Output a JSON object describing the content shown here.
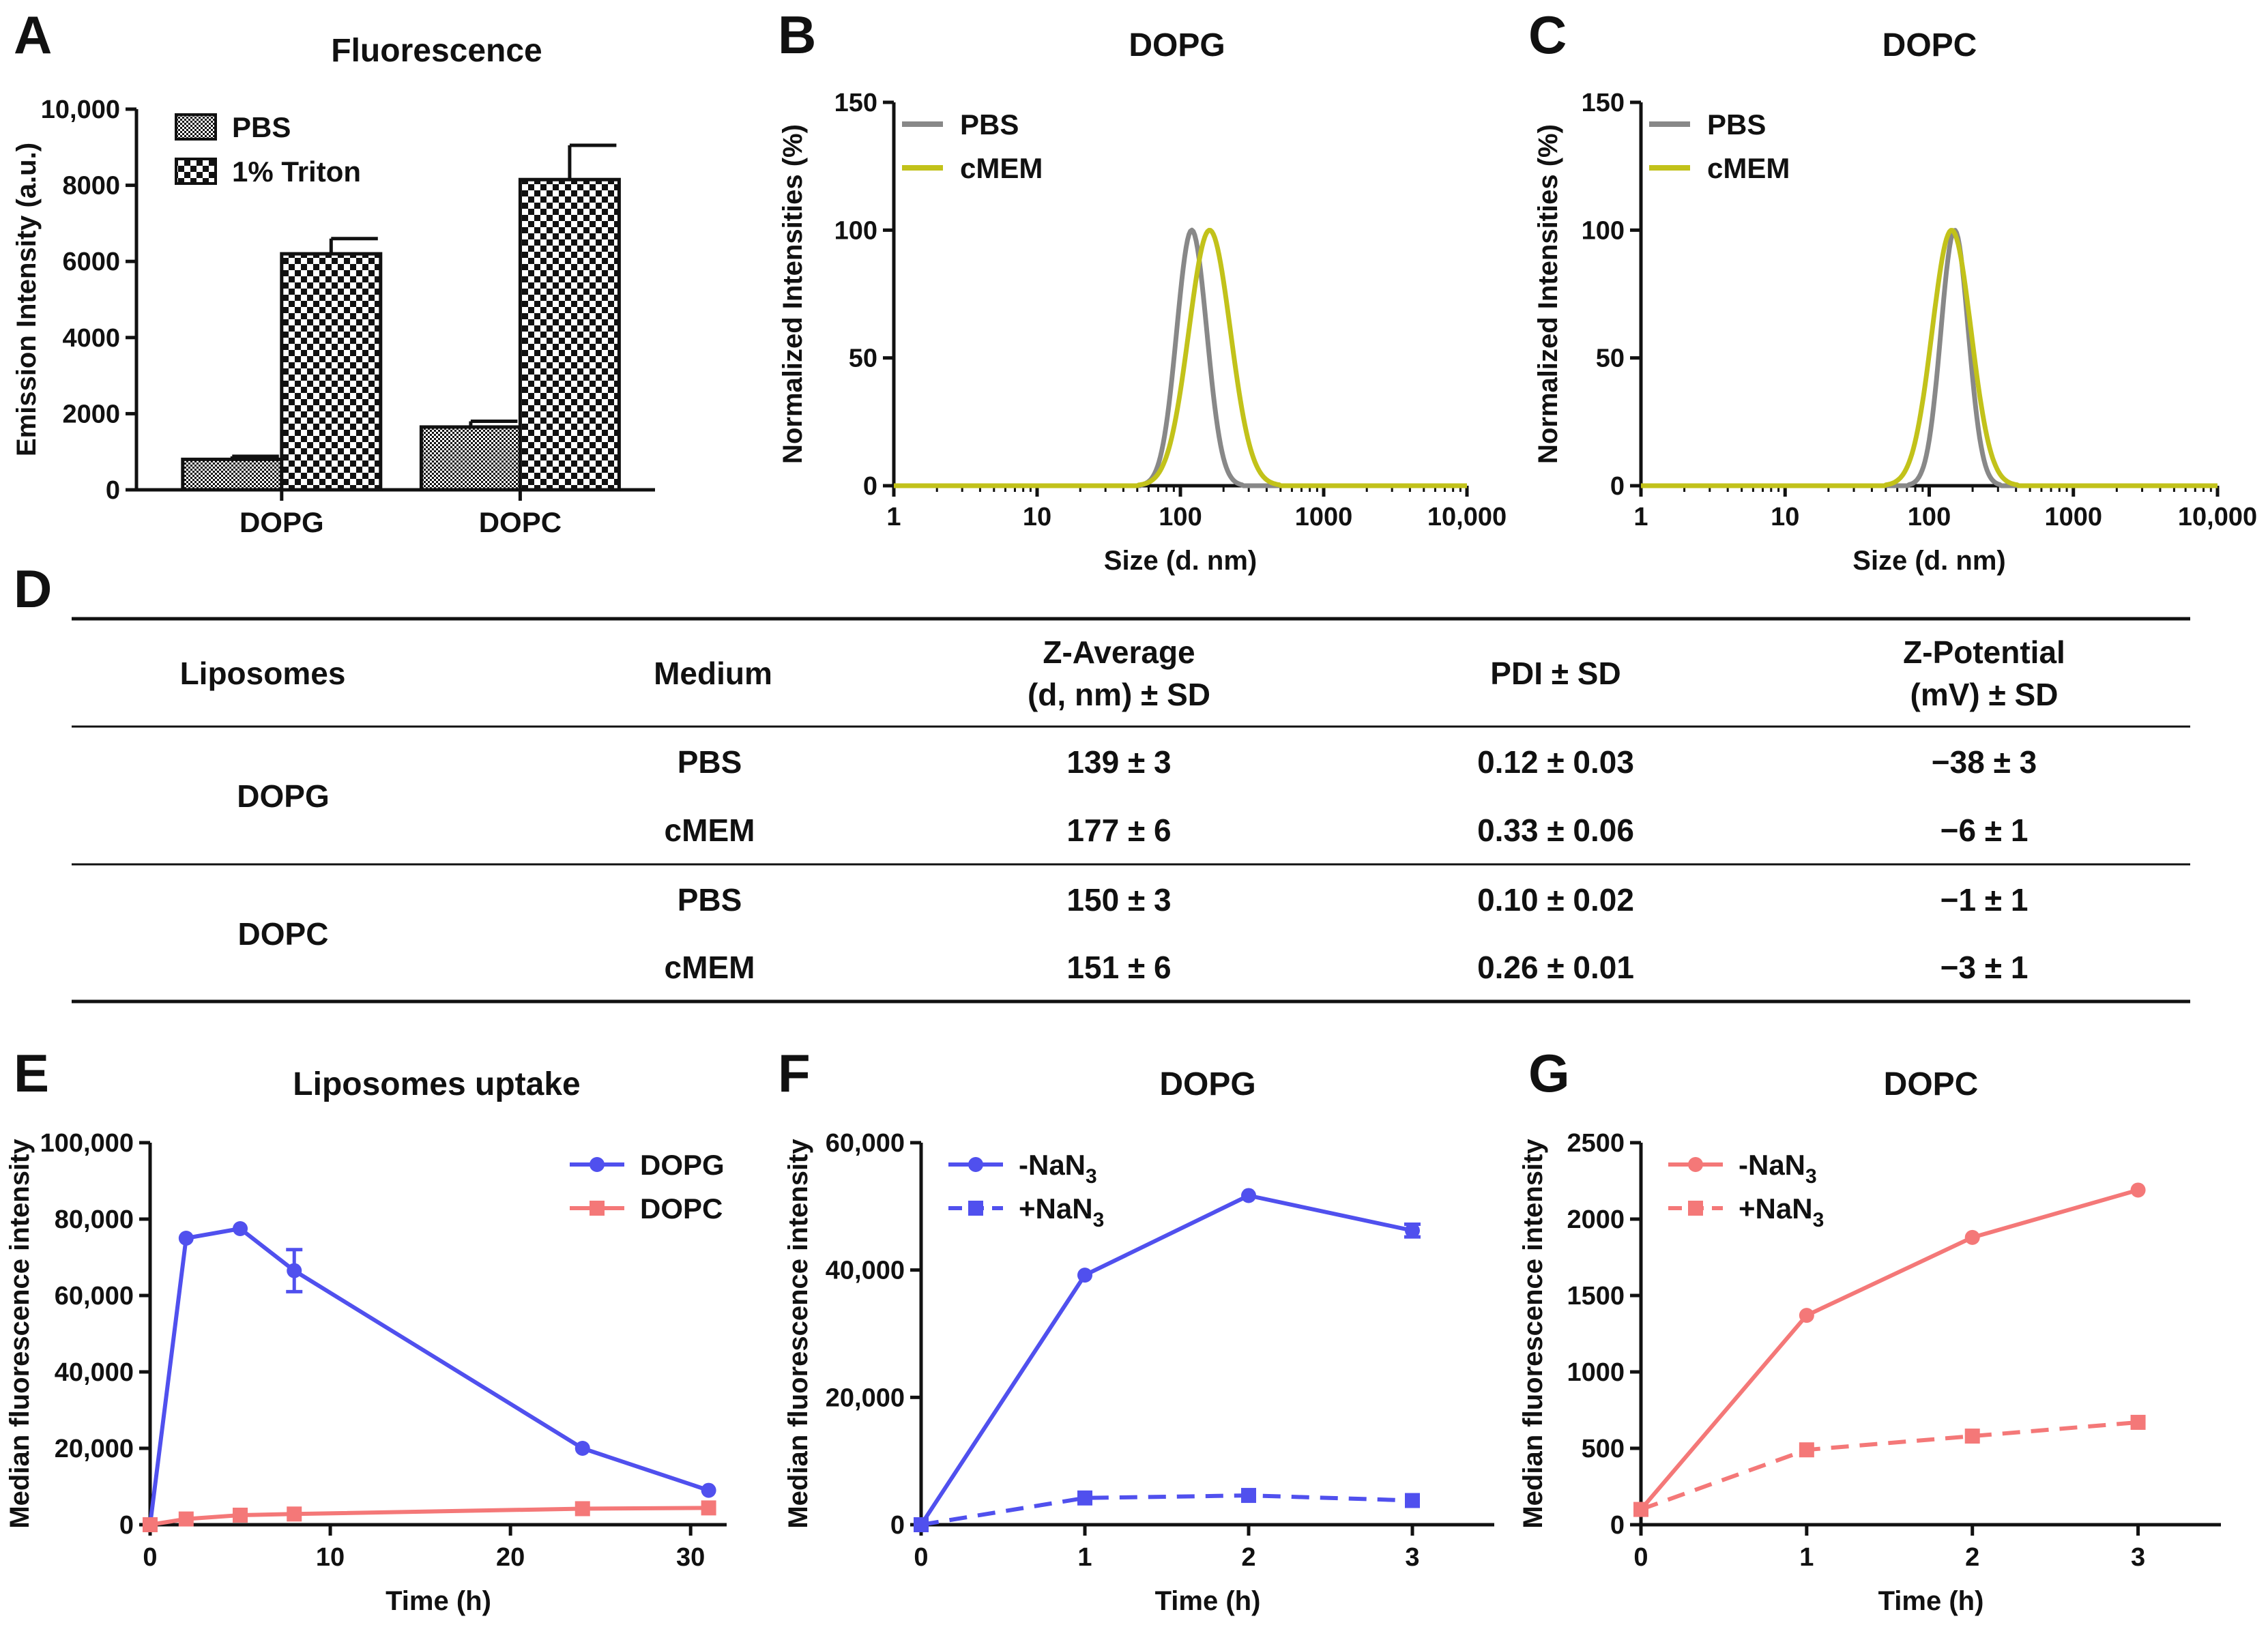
{
  "panel_labels": {
    "A": "A",
    "B": "B",
    "C": "C",
    "D": "D",
    "E": "E",
    "F": "F",
    "G": "G"
  },
  "colors": {
    "dopg": "#5050ee",
    "dopc": "#f47878",
    "pbs_line": "#888888",
    "cmem_line": "#c2c21a",
    "axis": "#111111"
  },
  "chart_data": [
    {
      "id": "A",
      "type": "bar",
      "title": "Fluorescence",
      "xlabel": "",
      "ylabel": "Emission Intensity (a.u.)",
      "ylim": [
        0,
        10000
      ],
      "yticks": [
        0,
        2000,
        4000,
        6000,
        8000,
        10000
      ],
      "ytick_labels": [
        "0",
        "2000",
        "4000",
        "6000",
        "8000",
        "10,000"
      ],
      "categories": [
        "DOPG",
        "DOPC"
      ],
      "series": [
        {
          "name": "PBS",
          "values": [
            800,
            1650
          ],
          "errors": [
            80,
            150
          ]
        },
        {
          "name": "1% Triton",
          "values": [
            6200,
            8150
          ],
          "errors": [
            400,
            900
          ]
        }
      ],
      "legend": "top-left"
    },
    {
      "id": "B",
      "type": "line",
      "title": "DOPG",
      "xlabel": "Size (d. nm)",
      "ylabel": "Normalized Intensities (%)",
      "xscale": "log",
      "xlim": [
        1,
        10000
      ],
      "xticks": [
        1,
        10,
        100,
        1000,
        10000
      ],
      "xtick_labels": [
        "1",
        "10",
        "100",
        "1000",
        "10,000"
      ],
      "ylim": [
        0,
        150
      ],
      "yticks": [
        0,
        50,
        100,
        150
      ],
      "ytick_labels": [
        "0",
        "50",
        "100",
        "150"
      ],
      "series": [
        {
          "name": "PBS",
          "peak": 120,
          "width": 0.105
        },
        {
          "name": "cMEM",
          "peak": 160,
          "width": 0.145
        }
      ],
      "legend": "top-left"
    },
    {
      "id": "C",
      "type": "line",
      "title": "DOPC",
      "xlabel": "Size (d. nm)",
      "ylabel": "Normalized Intensities (%)",
      "xscale": "log",
      "xlim": [
        1,
        10000
      ],
      "xticks": [
        1,
        10,
        100,
        1000,
        10000
      ],
      "xtick_labels": [
        "1",
        "10",
        "100",
        "1000",
        "10,000"
      ],
      "ylim": [
        0,
        150
      ],
      "yticks": [
        0,
        50,
        100,
        150
      ],
      "ytick_labels": [
        "0",
        "50",
        "100",
        "150"
      ],
      "series": [
        {
          "name": "PBS",
          "peak": 150,
          "width": 0.095
        },
        {
          "name": "cMEM",
          "peak": 143,
          "width": 0.135
        }
      ],
      "legend": "top-left"
    },
    {
      "id": "E",
      "type": "line",
      "title": "Liposomes uptake",
      "xlabel": "Time (h)",
      "ylabel": "Median fluorescence intensity",
      "xlim": [
        0,
        32
      ],
      "xticks": [
        0,
        10,
        20,
        30
      ],
      "xtick_labels": [
        "0",
        "10",
        "20",
        "30"
      ],
      "ylim": [
        0,
        100000
      ],
      "yticks": [
        0,
        20000,
        40000,
        60000,
        80000,
        100000
      ],
      "ytick_labels": [
        "0",
        "20,000",
        "40,000",
        "60,000",
        "80,000",
        "100,000"
      ],
      "series": [
        {
          "name": "DOPG",
          "marker": "circle",
          "dashed": false,
          "x": [
            0,
            2,
            5,
            8,
            24,
            31
          ],
          "y": [
            0,
            75000,
            77500,
            66500,
            20000,
            9000
          ],
          "errors": [
            0,
            0,
            0,
            5500,
            0,
            0
          ]
        },
        {
          "name": "DOPC",
          "marker": "square",
          "dashed": false,
          "x": [
            0,
            2,
            5,
            8,
            24,
            31
          ],
          "y": [
            0,
            1500,
            2500,
            2800,
            4200,
            4400
          ],
          "errors": [
            0,
            0,
            0,
            0,
            0,
            0
          ]
        }
      ],
      "legend": "top-right"
    },
    {
      "id": "F",
      "type": "line",
      "title": "DOPG",
      "xlabel": "Time (h)",
      "ylabel": "Median fluorescence intensity",
      "xlim": [
        0,
        3.5
      ],
      "xticks": [
        0,
        1,
        2,
        3
      ],
      "xtick_labels": [
        "0",
        "1",
        "2",
        "3"
      ],
      "ylim": [
        0,
        60000
      ],
      "yticks": [
        0,
        20000,
        40000,
        60000
      ],
      "ytick_labels": [
        "0",
        "20,000",
        "40,000",
        "60,000"
      ],
      "series": [
        {
          "name": "-NaN3",
          "legend_main": "-NaN",
          "legend_sub": "3",
          "marker": "circle",
          "dashed": false,
          "x": [
            0,
            1,
            2,
            3
          ],
          "y": [
            0,
            39200,
            51700,
            46200
          ],
          "errors": [
            0,
            0,
            0,
            1000
          ]
        },
        {
          "name": "+NaN3",
          "legend_main": "+NaN",
          "legend_sub": "3",
          "marker": "square",
          "dashed": true,
          "x": [
            0,
            1,
            2,
            3
          ],
          "y": [
            0,
            4200,
            4600,
            3800
          ],
          "errors": [
            0,
            0,
            0,
            0
          ]
        }
      ],
      "legend": "top-left"
    },
    {
      "id": "G",
      "type": "line",
      "title": "DOPC",
      "xlabel": "Time (h)",
      "ylabel": "Median fluorescence intensity",
      "xlim": [
        0,
        3.5
      ],
      "xticks": [
        0,
        1,
        2,
        3
      ],
      "xtick_labels": [
        "0",
        "1",
        "2",
        "3"
      ],
      "ylim": [
        0,
        2500
      ],
      "yticks": [
        0,
        500,
        1000,
        1500,
        2000,
        2500
      ],
      "ytick_labels": [
        "0",
        "500",
        "1000",
        "1500",
        "2000",
        "2500"
      ],
      "series": [
        {
          "name": "-NaN3",
          "legend_main": "-NaN",
          "legend_sub": "3",
          "marker": "circle",
          "dashed": false,
          "x": [
            0,
            1,
            2,
            3
          ],
          "y": [
            100,
            1370,
            1880,
            2190
          ],
          "errors": [
            0,
            0,
            0,
            0
          ]
        },
        {
          "name": "+NaN3",
          "legend_main": "+NaN",
          "legend_sub": "3",
          "marker": "square",
          "dashed": true,
          "x": [
            0,
            1,
            2,
            3
          ],
          "y": [
            100,
            490,
            580,
            670
          ],
          "errors": [
            0,
            0,
            0,
            0
          ]
        }
      ],
      "legend": "top-left"
    }
  ],
  "table": {
    "headers": [
      {
        "line1": "Liposomes",
        "line2": ""
      },
      {
        "line1": "Medium",
        "line2": ""
      },
      {
        "line1": "Z-Average",
        "line2": "(d, nm) ± SD"
      },
      {
        "line1": "PDI ± SD",
        "line2": ""
      },
      {
        "line1": "Z-Potential",
        "line2": "(mV) ± SD"
      }
    ],
    "groups": [
      {
        "liposome": "DOPG",
        "rows": [
          {
            "medium": "PBS",
            "z_average": "139 ± 3",
            "pdi": "0.12 ± 0.03",
            "z_potential": "−38 ± 3"
          },
          {
            "medium": "cMEM",
            "z_average": "177 ± 6",
            "pdi": "0.33 ± 0.06",
            "z_potential": "−6 ± 1"
          }
        ]
      },
      {
        "liposome": "DOPC",
        "rows": [
          {
            "medium": "PBS",
            "z_average": "150 ± 3",
            "pdi": "0.10 ± 0.02",
            "z_potential": "−1 ± 1"
          },
          {
            "medium": "cMEM",
            "z_average": "151 ± 6",
            "pdi": "0.26 ± 0.01",
            "z_potential": "−3 ± 1"
          }
        ]
      }
    ]
  }
}
